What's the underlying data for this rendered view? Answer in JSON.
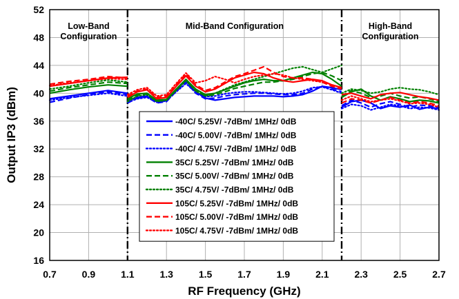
{
  "chart_data": {
    "type": "line",
    "xlabel": "RF Frequency (GHz)",
    "ylabel": "Output IP3 (dBm)",
    "xlim": [
      0.7,
      2.7
    ],
    "ylim": [
      16,
      52
    ],
    "x_ticks": [
      "0.7",
      "0.9",
      "1.1",
      "1.3",
      "1.5",
      "1.7",
      "1.9",
      "2.1",
      "2.3",
      "2.5",
      "2.7"
    ],
    "y_ticks": [
      "16",
      "20",
      "24",
      "28",
      "32",
      "36",
      "40",
      "44",
      "48",
      "52"
    ],
    "grid": true,
    "legend_position": "center-left",
    "colors": {
      "-40C": "#0000ff",
      "35C": "#008000",
      "105C": "#ff0000"
    },
    "regions": [
      {
        "lines": [
          "Low-Band",
          "Configuration"
        ],
        "x_start": 0.7,
        "x_end": 1.1
      },
      {
        "lines": [
          "Mid-Band Configuration"
        ],
        "x_start": 1.1,
        "x_end": 2.2
      },
      {
        "lines": [
          "High-Band",
          "Configuration"
        ],
        "x_start": 2.2,
        "x_end": 2.7
      }
    ],
    "dividers": [
      1.1,
      2.2
    ],
    "series": [
      {
        "name": "-40C/ 5.25V/ -7dBm/ 1MHz/ 0dB",
        "color": "#0000ff",
        "dash": "solid",
        "segments": [
          {
            "x": [
              0.7,
              0.8,
              0.9,
              1.0,
              1.1
            ],
            "y": [
              39.2,
              39.6,
              40.0,
              40.4,
              40.0
            ]
          },
          {
            "x": [
              1.1,
              1.15,
              1.2,
              1.25,
              1.3,
              1.35,
              1.4,
              1.45,
              1.5,
              1.55,
              1.6,
              1.65,
              1.7,
              1.75,
              1.8,
              1.85,
              1.9,
              1.95,
              2.0,
              2.05,
              2.1,
              2.15,
              2.2
            ],
            "y": [
              38.9,
              39.4,
              39.6,
              38.8,
              39.0,
              40.5,
              41.8,
              40.2,
              39.3,
              39.0,
              39.2,
              39.4,
              39.5,
              39.6,
              39.6,
              39.6,
              39.5,
              39.6,
              39.8,
              40.3,
              41.0,
              40.8,
              40.5
            ]
          },
          {
            "x": [
              2.2,
              2.25,
              2.3,
              2.35,
              2.4,
              2.45,
              2.5,
              2.55,
              2.6,
              2.65,
              2.7
            ],
            "y": [
              38.0,
              38.8,
              39.0,
              38.6,
              37.8,
              38.2,
              38.0,
              38.3,
              37.7,
              38.0,
              37.8
            ]
          }
        ]
      },
      {
        "name": "-40C/ 5.00V/ -7dBm/ 1MHz/ 0dB",
        "color": "#0000ff",
        "dash": "dashed",
        "segments": [
          {
            "x": [
              0.7,
              0.8,
              0.9,
              1.0,
              1.1
            ],
            "y": [
              38.7,
              39.3,
              39.8,
              40.2,
              39.8
            ]
          },
          {
            "x": [
              1.1,
              1.15,
              1.2,
              1.25,
              1.3,
              1.35,
              1.4,
              1.45,
              1.5,
              1.55,
              1.6,
              1.65,
              1.7,
              1.75,
              1.8,
              1.85,
              1.9,
              1.95,
              2.0,
              2.05,
              2.1,
              2.15,
              2.2
            ],
            "y": [
              38.6,
              39.3,
              39.5,
              38.6,
              38.8,
              40.3,
              41.6,
              40.0,
              39.2,
              39.3,
              39.6,
              39.8,
              39.9,
              40.0,
              40.0,
              39.9,
              39.8,
              39.8,
              40.0,
              40.6,
              41.0,
              40.6,
              40.2
            ]
          },
          {
            "x": [
              2.2,
              2.25,
              2.3,
              2.35,
              2.4,
              2.45,
              2.5,
              2.55,
              2.6,
              2.65,
              2.7
            ],
            "y": [
              38.2,
              39.0,
              38.6,
              38.0,
              38.5,
              38.8,
              38.4,
              38.0,
              38.3,
              38.2,
              38.0
            ]
          }
        ]
      },
      {
        "name": "-40C/ 4.75V/ -7dBm/ 1MHz/ 0dB",
        "color": "#0000ff",
        "dash": "dotted",
        "segments": [
          {
            "x": [
              0.7,
              0.8,
              0.9,
              1.0,
              1.1
            ],
            "y": [
              39.0,
              39.4,
              39.7,
              40.0,
              39.6
            ]
          },
          {
            "x": [
              1.1,
              1.15,
              1.2,
              1.25,
              1.3,
              1.35,
              1.4,
              1.45,
              1.5,
              1.55,
              1.6,
              1.65,
              1.7,
              1.75,
              1.8,
              1.85,
              1.9,
              1.95,
              2.0,
              2.05,
              2.1,
              2.15,
              2.2
            ],
            "y": [
              38.7,
              39.2,
              39.4,
              38.7,
              38.9,
              40.2,
              41.4,
              40.1,
              39.5,
              39.6,
              39.9,
              40.1,
              40.2,
              40.2,
              40.1,
              40.0,
              39.9,
              40.0,
              40.3,
              40.8,
              40.9,
              40.5,
              40.0
            ]
          },
          {
            "x": [
              2.2,
              2.25,
              2.3,
              2.35,
              2.4,
              2.45,
              2.5,
              2.55,
              2.6,
              2.65,
              2.7
            ],
            "y": [
              37.8,
              38.4,
              38.2,
              37.6,
              38.0,
              38.4,
              38.2,
              37.8,
              38.0,
              37.9,
              37.6
            ]
          }
        ]
      },
      {
        "name": "35C/ 5.25V/ -7dBm/ 1MHz/ 0dB",
        "color": "#008000",
        "dash": "solid",
        "segments": [
          {
            "x": [
              0.7,
              0.8,
              0.9,
              1.0,
              1.1
            ],
            "y": [
              40.0,
              40.5,
              40.9,
              41.2,
              41.0
            ]
          },
          {
            "x": [
              1.1,
              1.15,
              1.2,
              1.25,
              1.3,
              1.35,
              1.4,
              1.45,
              1.5,
              1.55,
              1.6,
              1.65,
              1.7,
              1.75,
              1.8,
              1.85,
              1.9,
              1.95,
              2.0,
              2.05,
              2.1,
              2.15,
              2.2
            ],
            "y": [
              39.2,
              39.9,
              40.0,
              39.0,
              39.1,
              40.6,
              42.0,
              40.6,
              39.8,
              40.0,
              40.5,
              41.0,
              41.5,
              41.8,
              42.0,
              41.8,
              41.8,
              42.2,
              42.6,
              43.0,
              42.8,
              42.0,
              41.0
            ]
          },
          {
            "x": [
              2.2,
              2.25,
              2.3,
              2.35,
              2.4,
              2.45,
              2.5,
              2.55,
              2.6,
              2.65,
              2.7
            ],
            "y": [
              39.4,
              40.2,
              40.6,
              39.6,
              39.0,
              39.5,
              39.2,
              38.8,
              39.0,
              38.9,
              38.6
            ]
          }
        ]
      },
      {
        "name": "35C/ 5.00V/ -7dBm/ 1MHz/ 0dB",
        "color": "#008000",
        "dash": "dashed",
        "segments": [
          {
            "x": [
              0.7,
              0.8,
              0.9,
              1.0,
              1.1
            ],
            "y": [
              40.3,
              40.8,
              41.2,
              41.6,
              41.4
            ]
          },
          {
            "x": [
              1.1,
              1.15,
              1.2,
              1.25,
              1.3,
              1.35,
              1.4,
              1.45,
              1.5,
              1.55,
              1.6,
              1.65,
              1.7,
              1.75,
              1.8,
              1.85,
              1.9,
              1.95,
              2.0,
              2.05,
              2.1,
              2.15,
              2.2
            ],
            "y": [
              39.0,
              39.7,
              39.9,
              38.9,
              39.0,
              40.5,
              41.9,
              40.4,
              39.6,
              39.8,
              40.2,
              40.7,
              41.0,
              41.3,
              41.6,
              41.6,
              41.8,
              42.0,
              42.4,
              42.8,
              43.0,
              42.5,
              41.8
            ]
          },
          {
            "x": [
              2.2,
              2.25,
              2.3,
              2.35,
              2.4,
              2.45,
              2.5,
              2.55,
              2.6,
              2.65,
              2.7
            ],
            "y": [
              39.6,
              40.4,
              40.0,
              39.4,
              39.6,
              40.0,
              39.6,
              39.3,
              39.5,
              39.2,
              38.8
            ]
          }
        ]
      },
      {
        "name": "35C/ 4.75V/ -7dBm/ 1MHz/ 0dB",
        "color": "#008000",
        "dash": "dotted",
        "segments": [
          {
            "x": [
              0.7,
              0.8,
              0.9,
              1.0,
              1.1
            ],
            "y": [
              40.6,
              41.0,
              41.5,
              41.9,
              41.6
            ]
          },
          {
            "x": [
              1.1,
              1.15,
              1.2,
              1.25,
              1.3,
              1.35,
              1.4,
              1.45,
              1.5,
              1.55,
              1.6,
              1.65,
              1.7,
              1.75,
              1.8,
              1.85,
              1.9,
              1.95,
              2.0,
              2.05,
              2.1,
              2.15,
              2.2
            ],
            "y": [
              38.8,
              39.6,
              39.8,
              38.8,
              39.0,
              40.4,
              41.8,
              40.3,
              39.6,
              40.0,
              40.6,
              41.2,
              41.6,
              42.0,
              42.4,
              42.8,
              43.2,
              43.6,
              43.8,
              43.4,
              43.0,
              43.5,
              44.0
            ]
          },
          {
            "x": [
              2.2,
              2.25,
              2.3,
              2.35,
              2.4,
              2.45,
              2.5,
              2.55,
              2.6,
              2.65,
              2.7
            ],
            "y": [
              40.0,
              40.6,
              40.4,
              40.0,
              40.2,
              40.6,
              40.8,
              40.6,
              40.5,
              40.2,
              39.8
            ]
          }
        ]
      },
      {
        "name": "105C/ 5.25V/ -7dBm/ 1MHz/ 0dB",
        "color": "#ff0000",
        "dash": "solid",
        "segments": [
          {
            "x": [
              0.7,
              0.8,
              0.9,
              1.0,
              1.1
            ],
            "y": [
              41.0,
              41.4,
              41.8,
              42.2,
              42.3
            ]
          },
          {
            "x": [
              1.1,
              1.15,
              1.2,
              1.25,
              1.3,
              1.35,
              1.4,
              1.45,
              1.5,
              1.55,
              1.6,
              1.65,
              1.7,
              1.75,
              1.8,
              1.85,
              1.9,
              1.95,
              2.0,
              2.05,
              2.1,
              2.15,
              2.2
            ],
            "y": [
              39.4,
              40.2,
              40.5,
              39.2,
              39.4,
              41.0,
              42.5,
              41.0,
              40.2,
              40.6,
              41.4,
              42.2,
              42.6,
              43.0,
              42.8,
              42.2,
              41.8,
              41.6,
              41.8,
              42.0,
              41.8,
              41.2,
              40.8
            ]
          },
          {
            "x": [
              2.2,
              2.25,
              2.3,
              2.35,
              2.4,
              2.45,
              2.5,
              2.55,
              2.6,
              2.65,
              2.7
            ],
            "y": [
              39.8,
              40.0,
              39.6,
              39.2,
              39.8,
              40.0,
              40.1,
              39.8,
              39.5,
              39.3,
              39.0
            ]
          }
        ]
      },
      {
        "name": "105C/ 5.00V/ -7dBm/ 1MHz/ 0dB",
        "color": "#ff0000",
        "dash": "dashed",
        "segments": [
          {
            "x": [
              0.7,
              0.8,
              0.9,
              1.0,
              1.1
            ],
            "y": [
              41.3,
              41.7,
              42.0,
              42.4,
              42.2
            ]
          },
          {
            "x": [
              1.1,
              1.15,
              1.2,
              1.25,
              1.3,
              1.35,
              1.4,
              1.45,
              1.5,
              1.55,
              1.6,
              1.65,
              1.7,
              1.75,
              1.8,
              1.85,
              1.9,
              1.95,
              2.0,
              2.05,
              2.1,
              2.15,
              2.2
            ],
            "y": [
              39.6,
              40.3,
              40.6,
              39.4,
              39.6,
              41.2,
              42.8,
              41.2,
              40.4,
              40.8,
              41.6,
              42.4,
              42.8,
              43.3,
              43.8,
              43.0,
              42.4,
              42.2,
              42.2,
              42.0,
              41.6,
              41.0,
              40.6
            ]
          },
          {
            "x": [
              2.2,
              2.25,
              2.3,
              2.35,
              2.4,
              2.45,
              2.5,
              2.55,
              2.6,
              2.65,
              2.7
            ],
            "y": [
              38.6,
              39.2,
              39.0,
              38.6,
              39.0,
              39.4,
              39.0,
              38.6,
              38.8,
              38.6,
              38.2
            ]
          }
        ]
      },
      {
        "name": "105C/ 4.75V/ -7dBm/ 1MHz/ 0dB",
        "color": "#ff0000",
        "dash": "dotted",
        "segments": [
          {
            "x": [
              0.7,
              0.8,
              0.9,
              1.0,
              1.1
            ],
            "y": [
              41.1,
              41.5,
              41.8,
              42.1,
              42.0
            ]
          },
          {
            "x": [
              1.1,
              1.15,
              1.2,
              1.25,
              1.3,
              1.35,
              1.4,
              1.45,
              1.5,
              1.55,
              1.6,
              1.65,
              1.7,
              1.75,
              1.8,
              1.85,
              1.9,
              1.95,
              2.0,
              2.05,
              2.1,
              2.15,
              2.2
            ],
            "y": [
              39.8,
              40.5,
              40.8,
              39.6,
              39.8,
              41.4,
              42.9,
              41.5,
              41.8,
              42.4,
              42.0,
              41.5,
              42.0,
              42.4,
              42.6,
              42.8,
              42.6,
              42.2,
              42.0,
              41.8,
              41.6,
              41.2,
              40.8
            ]
          },
          {
            "x": [
              2.2,
              2.25,
              2.3,
              2.35,
              2.4,
              2.45,
              2.5,
              2.55,
              2.6,
              2.65,
              2.7
            ],
            "y": [
              39.0,
              39.6,
              39.2,
              38.8,
              39.0,
              39.2,
              38.9,
              38.5,
              38.6,
              38.4,
              38.0
            ]
          }
        ]
      }
    ]
  }
}
